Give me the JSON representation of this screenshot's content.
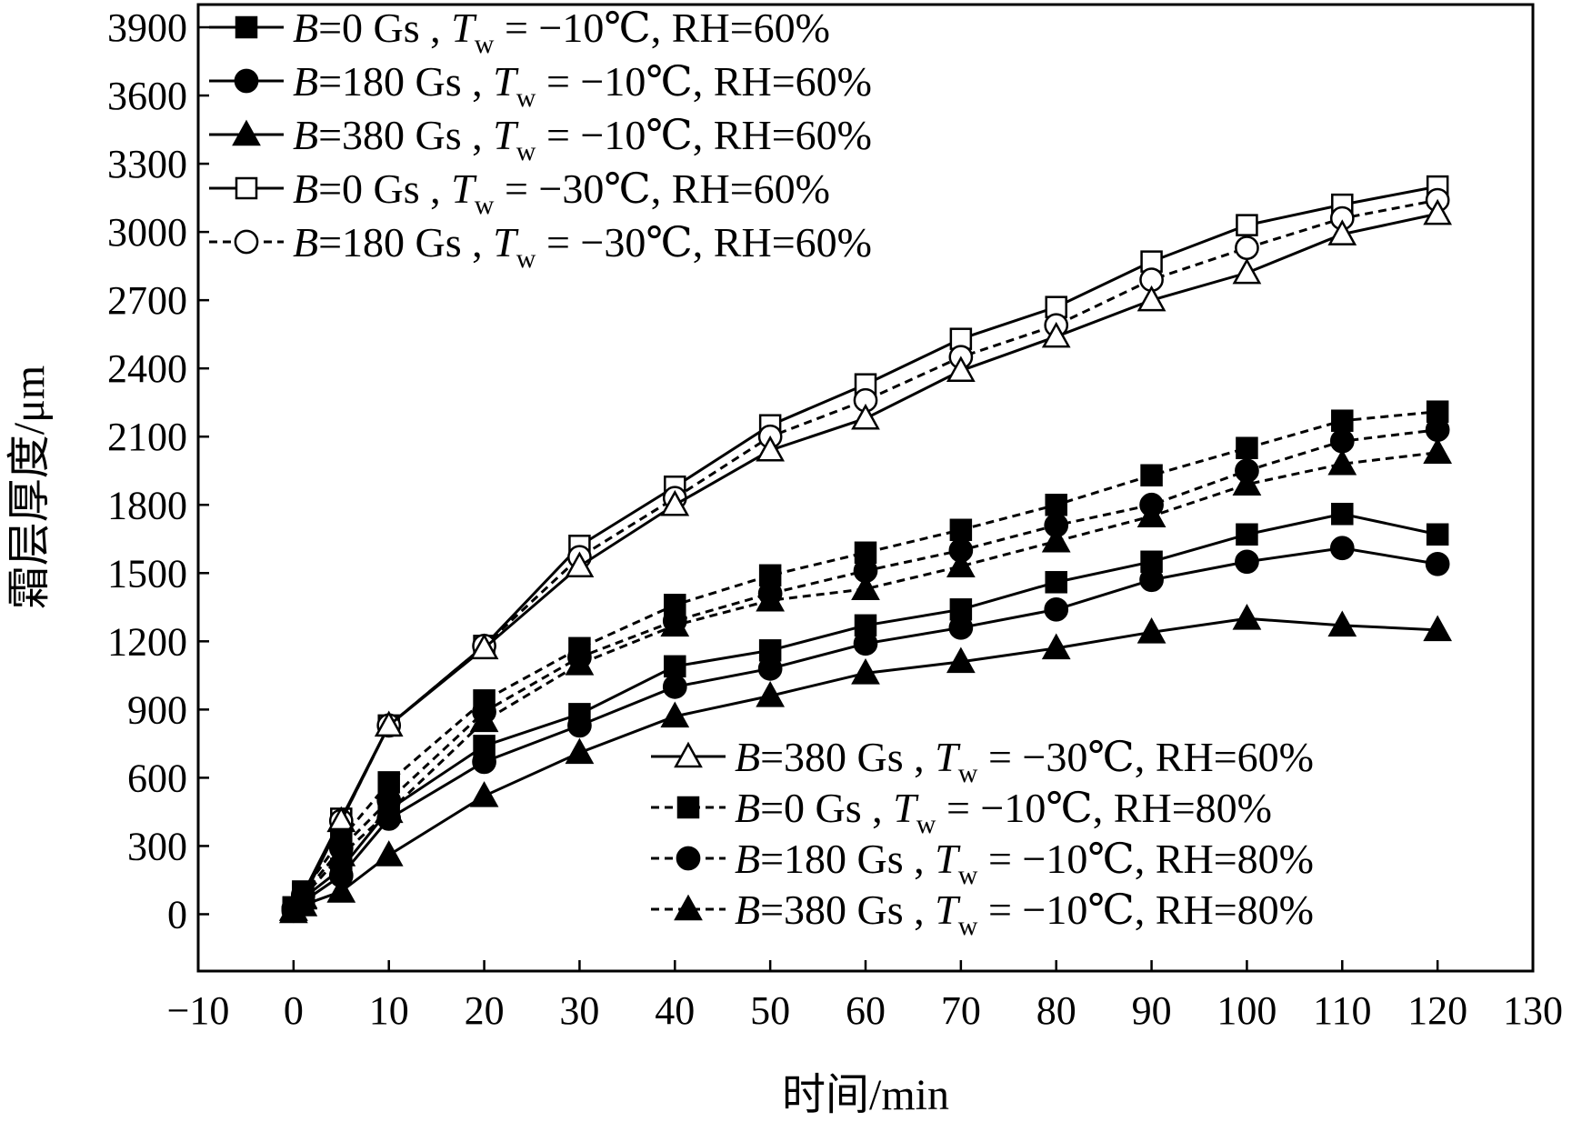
{
  "chart_data": {
    "type": "line",
    "title": "",
    "xlabel": "时间/min",
    "ylabel": "霜层厚度/μm",
    "xlim": [
      -10,
      130
    ],
    "ylim": [
      -250,
      4000
    ],
    "xticks": [
      -10,
      0,
      10,
      20,
      30,
      40,
      50,
      60,
      70,
      80,
      90,
      100,
      110,
      120,
      130
    ],
    "yticks": [
      0,
      300,
      600,
      900,
      1200,
      1500,
      1800,
      2100,
      2400,
      2700,
      3000,
      3300,
      3600,
      3900
    ],
    "grid": false,
    "x": [
      0,
      1,
      5,
      10,
      20,
      30,
      40,
      50,
      60,
      70,
      80,
      90,
      100,
      110,
      120
    ],
    "series": [
      {
        "name": "B=0 Gs , Tw = −10℃, RH=60%",
        "B": "B",
        "rest": "=0 Gs , ",
        "T": "T",
        "sub": "w",
        "cond": " = −10℃, RH=60%",
        "marker": "square-filled",
        "dash": false,
        "values": [
          20,
          70,
          200,
          460,
          740,
          880,
          1090,
          1160,
          1270,
          1340,
          1460,
          1550,
          1670,
          1760,
          1670
        ]
      },
      {
        "name": "B=180 Gs , Tw = −10℃, RH=60%",
        "B": "B",
        "rest": "=180 Gs , ",
        "T": "T",
        "sub": "w",
        "cond": " = −10℃, RH=60%",
        "marker": "circle-filled",
        "dash": false,
        "values": [
          15,
          55,
          170,
          420,
          670,
          830,
          1000,
          1080,
          1190,
          1260,
          1340,
          1470,
          1550,
          1610,
          1540
        ]
      },
      {
        "name": "B=380 Gs , Tw = −10℃, RH=60%",
        "B": "B",
        "rest": "=380 Gs , ",
        "T": "T",
        "sub": "w",
        "cond": " = −10℃, RH=60%",
        "marker": "triangle-filled",
        "dash": false,
        "values": [
          10,
          40,
          100,
          260,
          520,
          710,
          870,
          960,
          1060,
          1110,
          1170,
          1240,
          1300,
          1270,
          1250
        ]
      },
      {
        "name": "B=0 Gs , Tw = −30℃, RH=60%",
        "B": "B",
        "rest": "=0 Gs , ",
        "T": "T",
        "sub": "w",
        "cond": " = −30℃, RH=60%",
        "marker": "square-open",
        "dash": false,
        "values": [
          30,
          90,
          420,
          830,
          1180,
          1620,
          1880,
          2150,
          2330,
          2530,
          2670,
          2870,
          3030,
          3120,
          3200
        ]
      },
      {
        "name": "B=180 Gs , Tw = −30℃, RH=60%",
        "B": "B",
        "rest": "=180 Gs , ",
        "T": "T",
        "sub": "w",
        "cond": " = −30℃, RH=60%",
        "marker": "circle-open",
        "dash": true,
        "values": [
          25,
          80,
          410,
          830,
          1180,
          1570,
          1830,
          2100,
          2260,
          2450,
          2590,
          2790,
          2930,
          3060,
          3140
        ]
      },
      {
        "name": "B=380 Gs , Tw = −30℃, RH=60%",
        "B": "B",
        "rest": "=380 Gs , ",
        "T": "T",
        "sub": "w",
        "cond": " = −30℃, RH=60%",
        "marker": "triangle-open",
        "dash": false,
        "values": [
          20,
          70,
          410,
          830,
          1170,
          1530,
          1800,
          2040,
          2180,
          2390,
          2540,
          2700,
          2820,
          2990,
          3080
        ]
      },
      {
        "name": "B=0 Gs , Tw = −10℃, RH=80%",
        "B": "B",
        "rest": "=0 Gs , ",
        "T": "T",
        "sub": "w",
        "cond": " = −10℃, RH=80%",
        "marker": "square-filled",
        "dash": true,
        "values": [
          30,
          100,
          330,
          580,
          940,
          1170,
          1360,
          1490,
          1590,
          1690,
          1800,
          1930,
          2050,
          2170,
          2210
        ]
      },
      {
        "name": "B=180 Gs , Tw = −10℃, RH=80%",
        "B": "B",
        "rest": "=180 Gs , ",
        "T": "T",
        "sub": "w",
        "cond": " = −10℃, RH=80%",
        "marker": "circle-filled",
        "dash": true,
        "values": [
          25,
          85,
          290,
          500,
          890,
          1130,
          1290,
          1410,
          1510,
          1600,
          1710,
          1800,
          1950,
          2080,
          2130
        ]
      },
      {
        "name": "B=380 Gs , Tw = −10℃, RH=80%",
        "B": "B",
        "rest": "=380 Gs , ",
        "T": "T",
        "sub": "w",
        "cond": " = −10℃, RH=80%",
        "marker": "triangle-filled",
        "dash": true,
        "values": [
          20,
          75,
          260,
          450,
          850,
          1100,
          1270,
          1380,
          1430,
          1530,
          1640,
          1750,
          1890,
          1980,
          2030
        ]
      }
    ],
    "legend_top": [
      0,
      1,
      2,
      3,
      4
    ],
    "legend_bottom": [
      5,
      6,
      7,
      8
    ],
    "legend_placement": [
      "top-left",
      "bottom-right"
    ]
  }
}
